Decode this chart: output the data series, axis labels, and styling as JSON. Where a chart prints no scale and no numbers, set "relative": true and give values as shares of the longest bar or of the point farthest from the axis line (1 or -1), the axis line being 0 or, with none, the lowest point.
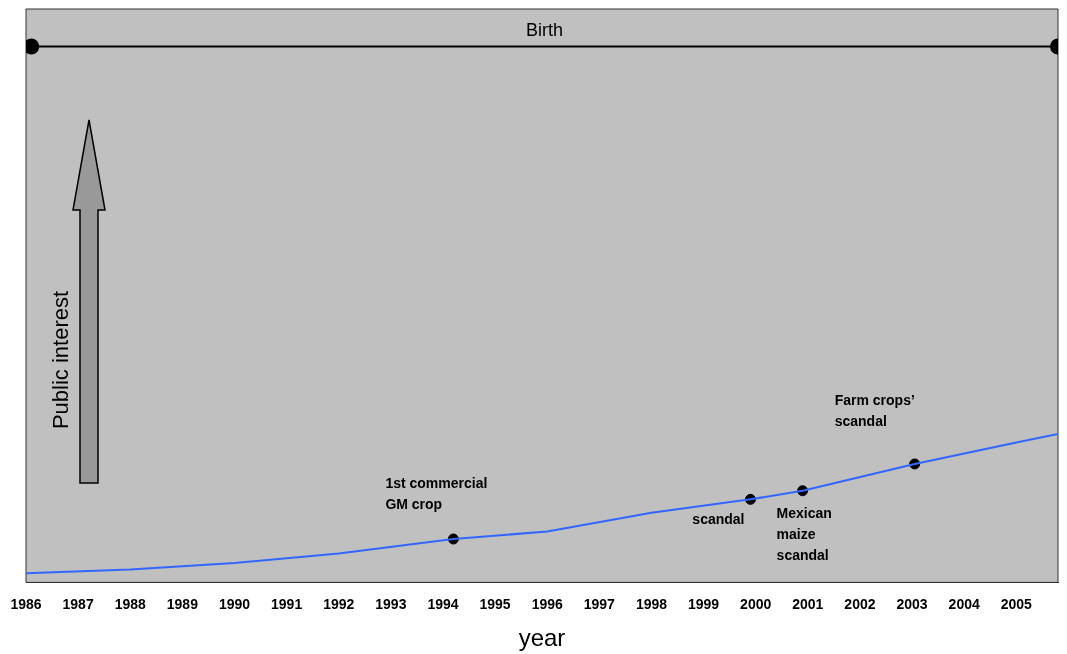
{
  "chart_data": {
    "type": "line",
    "relative": true,
    "xlabel": "year",
    "ylabel": "Public interest",
    "xlim": [
      1986,
      2005.8
    ],
    "xticks": [
      1986,
      1987,
      1988,
      1989,
      1990,
      1991,
      1992,
      1993,
      1994,
      1995,
      1996,
      1997,
      1998,
      1999,
      2000,
      2001,
      2002,
      2003,
      2004,
      2005
    ],
    "grid": false,
    "legend": false,
    "line_style": "solid",
    "series": [
      {
        "color": "#3366ff",
        "marker": "none",
        "x": [
          1986,
          1988,
          1990,
          1992,
          1994.2,
          1996,
          1998,
          1999.9,
          2000.9,
          2003.05,
          2005,
          2005.8
        ],
        "values": [
          0.017,
          0.024,
          0.036,
          0.054,
          0.081,
          0.095,
          0.13,
          0.155,
          0.171,
          0.221,
          0.261,
          0.277
        ]
      },
      {
        "type": "scatter",
        "color": "#000000",
        "marker": "circle",
        "x": [
          1994.2,
          1999.9,
          2000.9,
          2003.05
        ],
        "values": [
          0.081,
          0.155,
          0.171,
          0.221
        ]
      },
      {
        "type": "line",
        "name": "Birth",
        "color": "#000000",
        "marker": "circle",
        "x": [
          1986.1,
          2005.8
        ],
        "values": [
          1,
          1
        ]
      }
    ],
    "annotations": [
      {
        "text": "1st commercial\nGM crop",
        "x": 1994.2,
        "y": 0.081
      },
      {
        "text": "scandal",
        "x": 1999.9,
        "y": 0.155
      },
      {
        "text": "Mexican\nmaize\nscandal",
        "x": 2000.9,
        "y": 0.171
      },
      {
        "text": "Farm crops’\nscandal",
        "x": 2003.05,
        "y": 0.221
      }
    ]
  }
}
